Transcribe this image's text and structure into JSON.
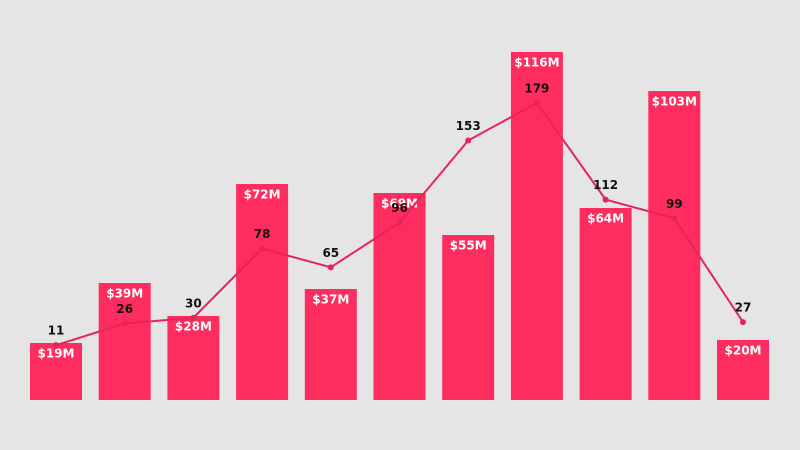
{
  "chart_data": {
    "type": "bar",
    "categories": [
      null,
      null,
      null,
      null,
      null,
      null,
      null,
      null,
      null,
      null,
      null
    ],
    "series": [
      {
        "type": "bar",
        "color": "#ff2d5f",
        "values": [
          19,
          39,
          28,
          72,
          37,
          69,
          55,
          116,
          64,
          103,
          20
        ],
        "value_labels": [
          "$19M",
          "$39M",
          "$28M",
          "$72M",
          "$37M",
          "$69M",
          "$55M",
          "$116M",
          "$64M",
          "$103M",
          "$20M"
        ]
      },
      {
        "type": "line",
        "axis": "y2",
        "color": "#e5245a",
        "values": [
          11,
          26,
          30,
          78,
          65,
          96,
          153,
          179,
          112,
          99,
          27
        ]
      }
    ]
  }
}
